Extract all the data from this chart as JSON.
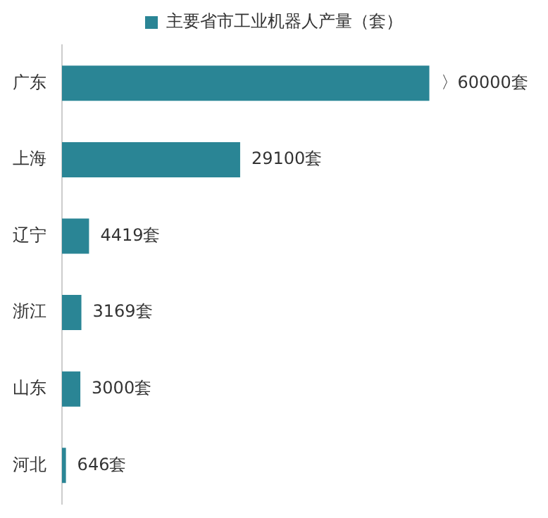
{
  "chart_data": {
    "type": "bar",
    "orientation": "horizontal",
    "categories": [
      "广东",
      "上海",
      "辽宁",
      "浙江",
      "山东",
      "河北"
    ],
    "series": [
      {
        "name": "主要省市工业机器人产量（套）",
        "color": "#2a8595",
        "values": [
          60000,
          29100,
          4419,
          3169,
          3000,
          646
        ],
        "value_labels": [
          "〉60000套",
          "29100套",
          "4419套",
          "3169套",
          "3000套",
          "646套"
        ]
      }
    ],
    "legend": "top",
    "tick_labels": "y"
  }
}
